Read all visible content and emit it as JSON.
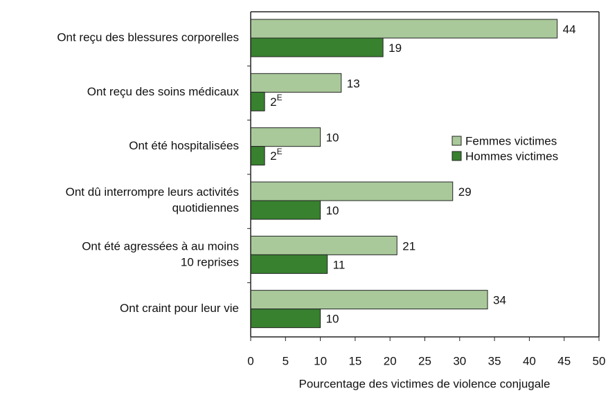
{
  "chart_data": {
    "type": "bar",
    "orientation": "horizontal",
    "xlabel": "Pourcentage des victimes de violence conjugale",
    "categories": [
      [
        "Ont reçu des blessures corporelles"
      ],
      [
        "Ont reçu des soins médicaux"
      ],
      [
        "Ont été hospitalisées"
      ],
      [
        "Ont dû interrompre leurs activités",
        "quotidiennes"
      ],
      [
        "Ont été agressées à au moins",
        "10 reprises"
      ],
      [
        "Ont craint pour leur vie"
      ]
    ],
    "series": [
      {
        "name": "Femmes victimes",
        "color": "#a9c99a",
        "values": [
          44,
          13,
          10,
          29,
          21,
          34
        ],
        "value_labels": [
          "44",
          "13",
          "10",
          "29",
          "21",
          "34"
        ]
      },
      {
        "name": "Hommes victimes",
        "color": "#38812f",
        "values": [
          19,
          2,
          2,
          10,
          11,
          10
        ],
        "value_labels": [
          "19",
          "2E",
          "2E",
          "10",
          "11",
          "10"
        ]
      }
    ],
    "xlim": [
      0,
      50
    ],
    "xticks": [
      0,
      5,
      10,
      15,
      20,
      25,
      30,
      35,
      40,
      45,
      50
    ],
    "grid": false,
    "legend": "right"
  }
}
